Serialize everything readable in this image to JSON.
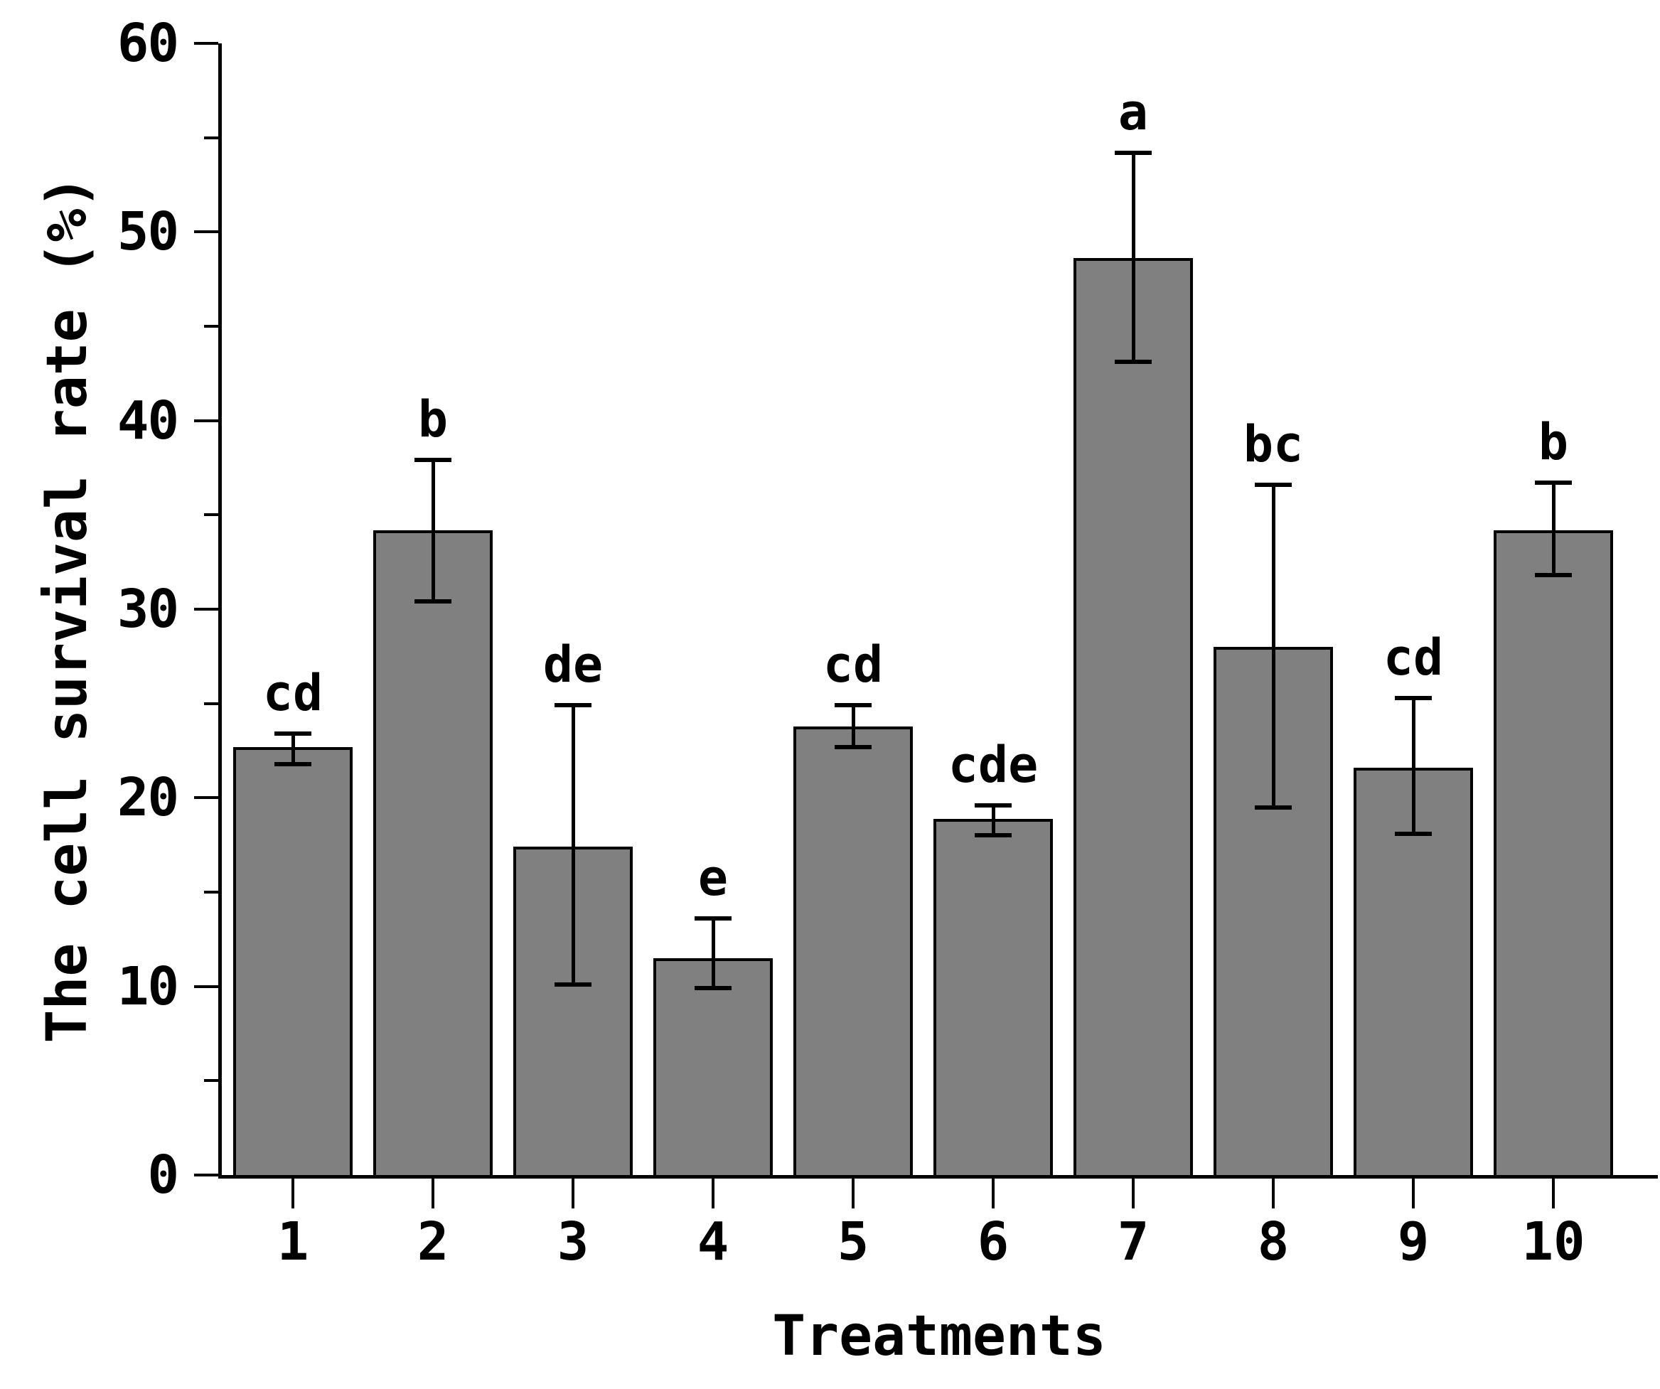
{
  "chart_data": {
    "type": "bar",
    "title": "",
    "xlabel": "Treatments",
    "ylabel": "The cell survival rate (%)",
    "categories": [
      "1",
      "2",
      "3",
      "4",
      "5",
      "6",
      "7",
      "8",
      "9",
      "10"
    ],
    "series": [
      {
        "name": "cell-survival-rate",
        "values": [
          22.7,
          34.2,
          17.4,
          11.5,
          23.8,
          18.9,
          48.6,
          28.0,
          21.6,
          34.2
        ],
        "error_low": [
          21.8,
          30.4,
          10.1,
          9.9,
          22.7,
          18.0,
          43.1,
          19.5,
          18.1,
          31.8
        ],
        "error_high": [
          23.4,
          37.9,
          24.9,
          13.6,
          24.9,
          19.6,
          54.2,
          36.6,
          25.3,
          36.7
        ]
      }
    ],
    "significance_labels": [
      "cd",
      "b",
      "de",
      "e",
      "cd",
      "cde",
      "a",
      "bc",
      "cd",
      "b"
    ],
    "ylim": [
      0,
      60
    ],
    "yticks": [
      0,
      10,
      20,
      30,
      40,
      50,
      60
    ],
    "yminorticks": [
      5,
      15,
      25,
      35,
      45,
      55
    ],
    "grid": false,
    "legend": null,
    "bar_color": "#808080",
    "edge_color": "#000000",
    "background_color": "#ffffff"
  }
}
